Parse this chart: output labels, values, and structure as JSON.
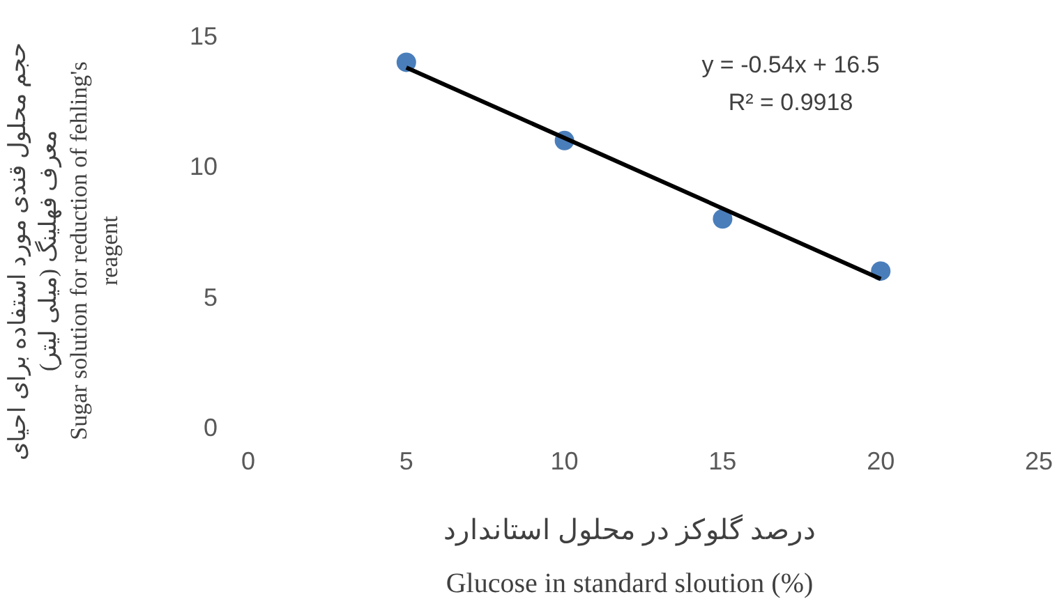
{
  "chart_data": {
    "type": "scatter",
    "xlabel": "درصد گلوکز در محلول استاندارد\nGlucose in standard sloution (%)",
    "ylabel": "حجم محلول قندی مورد استفاده برای احیای\nمعرف فهلینگ (میلی لیتر)\nSugar solution for reduction of fehling's\nreagent",
    "xlim": [
      0,
      25
    ],
    "xticks": [
      0,
      5,
      10,
      15,
      20,
      25
    ],
    "ylim": [
      0,
      15
    ],
    "yticks": [
      0,
      5,
      10,
      15
    ],
    "grid": false,
    "series": [
      {
        "color": "#4a7ebb",
        "marker": "circle",
        "x": [
          5,
          10,
          15,
          20
        ],
        "values": [
          14,
          11,
          8,
          6
        ]
      },
      {
        "type": "line",
        "color": "#000000",
        "line_style": "solid",
        "marker": "none",
        "x": [
          5,
          20
        ],
        "values": [
          13.8,
          5.7
        ]
      }
    ],
    "annotations": [
      "y = -0.54x + 16.5",
      "R² = 0.9918"
    ]
  }
}
